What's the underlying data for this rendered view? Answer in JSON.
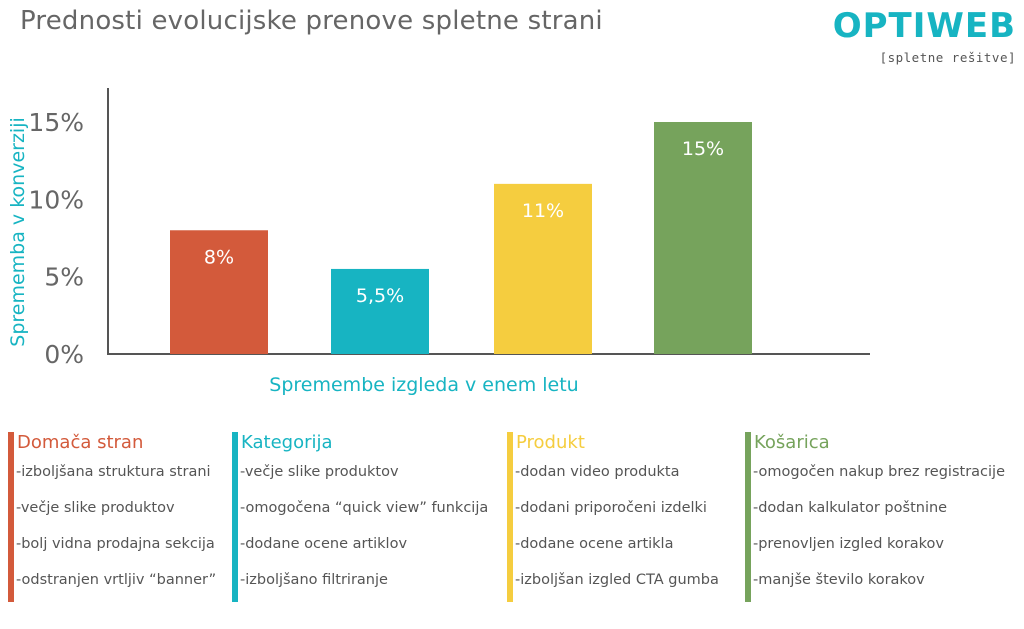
{
  "title": "Prednosti evolucijske prenove spletne strani",
  "logo": {
    "word": "OPTIWEB",
    "subtitle": "[spletne rešitve]",
    "color": "#17b4c2"
  },
  "chart_data": {
    "type": "bar",
    "categories": [
      "Domača stran",
      "Kategorija",
      "Produkt",
      "Košarica"
    ],
    "values": [
      8,
      5.5,
      11,
      15
    ],
    "data_labels": [
      "8%",
      "5,5%",
      "11%",
      "15%"
    ],
    "colors": [
      "#d35a3b",
      "#17b4c2",
      "#f5cd3f",
      "#76a35c"
    ],
    "ylabel": "Sprememba v konverziji",
    "xlabel": "Spremembe izgleda v enem letu",
    "yticks": [
      "0%",
      "5%",
      "10%",
      "15%"
    ],
    "ytick_values": [
      0,
      5,
      10,
      15
    ],
    "ylim": [
      0,
      16
    ],
    "grid": false,
    "axis_label_color": "#17b4c2"
  },
  "legend": [
    {
      "heading": "Domača stran",
      "color": "#d35a3b",
      "items": [
        "-izboljšana struktura strani",
        "-večje slike produktov",
        "-bolj vidna prodajna sekcija",
        "-odstranjen vrtljiv “banner”"
      ]
    },
    {
      "heading": "Kategorija",
      "color": "#17b4c2",
      "items": [
        "-večje slike produktov",
        "-omogočena “quick view” funkcija",
        "-dodane ocene artiklov",
        "-izboljšano filtriranje"
      ]
    },
    {
      "heading": "Produkt",
      "color": "#f5cd3f",
      "items": [
        "-dodan video produkta",
        "-dodani priporočeni izdelki",
        "-dodane ocene artikla",
        "-izboljšan izgled CTA gumba"
      ]
    },
    {
      "heading": "Košarica",
      "color": "#76a35c",
      "items": [
        "-omogočen nakup brez registracije",
        "-dodan kalkulator poštnine",
        "-prenovljen izgled korakov",
        "-manjše število korakov"
      ]
    }
  ]
}
